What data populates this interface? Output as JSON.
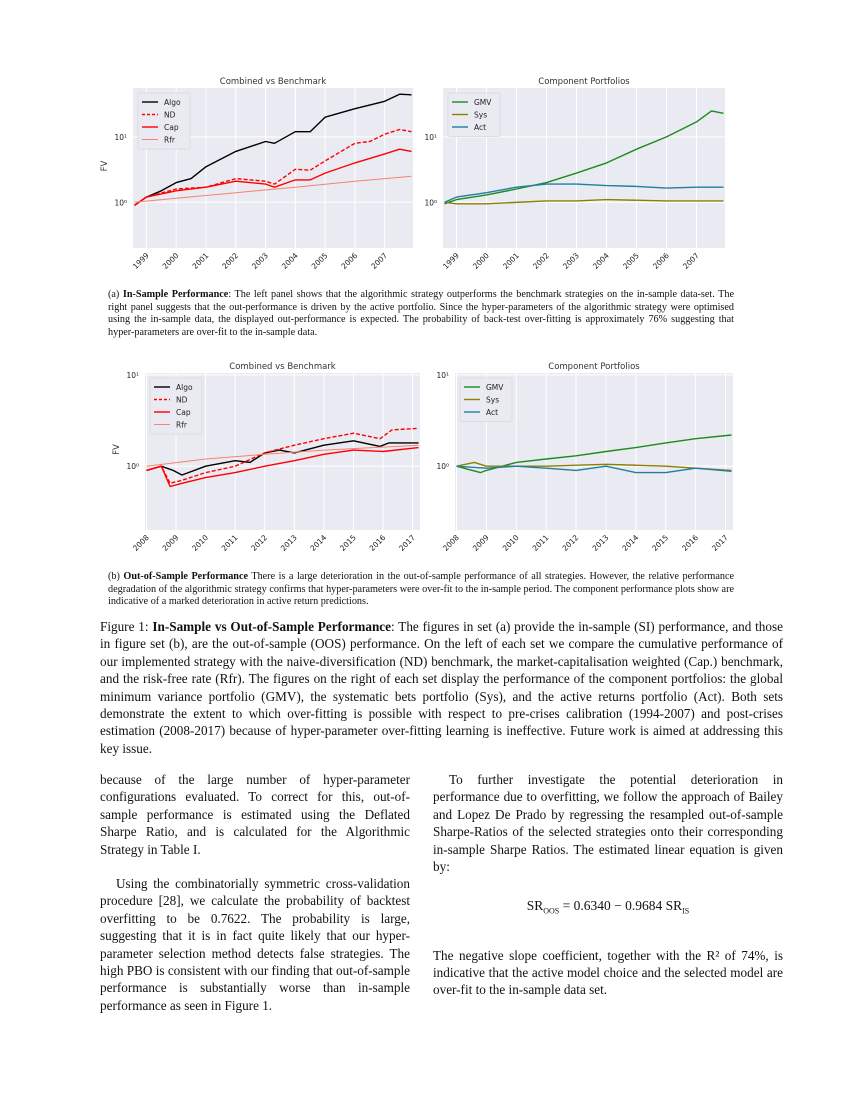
{
  "figure": {
    "panel_a_caption": {
      "label": "(a) ",
      "bold": "In-Sample Performance",
      "text": ": The left panel shows that the algorithmic strategy outperforms the benchmark strategies on the in-sample data-set. The right panel suggests that the out-performance is driven by the active portfolio. Since the hyper-parameters of the algorithmic strategy were optimised using the in-sample data, the displayed out-performance is expected. The probability of back-test over-fitting is approximately 76% suggesting that hyper-parameters are over-fit to the in-sample data."
    },
    "panel_b_caption": {
      "label": "(b) ",
      "bold": "Out-of-Sample Performance",
      "text": " There is a large deterioration in the out-of-sample performance of all strategies. However, the relative performance degradation of the algorithmic strategy confirms that hyper-parameters were over-fit to the in-sample period. The component performance plots show are indicative of a marked deterioration in active return predictions."
    },
    "caption": {
      "label": "Figure 1: ",
      "bold": "In-Sample vs Out-of-Sample Performance",
      "text": ": The figures in set (a) provide the in-sample (SI) performance, and those in figure set (b), are the out-of-sample (OOS) performance. On the left of each set we compare the cumulative performance of our implemented strategy with the naive-diversification (ND) benchmark, the market-capitalisation weighted (Cap.) benchmark, and the risk-free rate (Rfr). The figures on the right of each set display the performance of the component portfolios: the global minimum variance portfolio (GMV), the systematic bets portfolio (Sys), and the active returns portfolio (Act). Both sets demonstrate the extent to which over-fitting is possible with respect to pre-crises calibration (1994-2007) and post-crises estimation (2008-2017) because of hyper-parameter over-fitting learning is ineffective. Future work is aimed at addressing this key issue."
    }
  },
  "body": {
    "left": [
      "because of the large number of hyper-parameter configurations evaluated. To correct for this, out-of-sample performance is estimated using the Deflated Sharpe Ratio, and is calculated for the Algorithmic Strategy in Table I.",
      "Using the combinatorially symmetric cross-validation procedure [28], we calculate the probability of backtest overfitting to be 0.7622. The probability is large, suggesting that it is in fact quite likely that our hyper-parameter selection method detects false strategies. The high PBO is consistent with our finding that out-of-sample performance is substantially worse than in-sample performance as seen in Figure 1."
    ],
    "right": [
      "To further investigate the potential deterioration in performance due to overfitting, we follow the approach of Bailey and Lopez De Prado by regressing the resampled out-of-sample Sharpe-Ratios of the selected strategies onto their corresponding in-sample Sharpe Ratios. The estimated linear equation is given by:",
      "The negative slope coefficient, together with the R² of 74%, is indicative that the active model choice and the selected model are over-fit to the in-sample data set."
    ],
    "equation": {
      "lhs": "SR",
      "lhs_sub": "OOS",
      "rhs": " = 0.6340 − 0.9684 SR",
      "rhs_sub": "IS"
    }
  },
  "colors": {
    "plot_bg": "#eaeaf2",
    "grid": "#ffffff",
    "Algo": "#000000",
    "ND": "#ff0000",
    "Cap": "#ff0000",
    "Rfr": "#fa8072",
    "GMV": "#1a8c1a",
    "Sys": "#8c8000",
    "Act": "#1f7f9f"
  },
  "chart_data": [
    {
      "type": "line",
      "title": "Combined vs Benchmark",
      "ylabel": "FV",
      "yscale": "log",
      "ylim": [
        0.2,
        56
      ],
      "xlim": [
        1998.55,
        2007.95
      ],
      "yticks": [
        {
          "value": 1,
          "label": "10⁰"
        },
        {
          "value": 10,
          "label": "10¹"
        }
      ],
      "xticks": [
        "1999",
        "2000",
        "2001",
        "2002",
        "2003",
        "2004",
        "2005",
        "2006",
        "2007"
      ],
      "grid": true,
      "legend": "top-left",
      "series": [
        {
          "name": "Algo",
          "style": "solid",
          "x": [
            1998.6,
            1999,
            1999.5,
            2000,
            2000.5,
            2001,
            2002,
            2003,
            2003.3,
            2004,
            2004.5,
            2005,
            2006,
            2007,
            2007.5,
            2007.9
          ],
          "y": [
            0.9,
            1.2,
            1.5,
            2.0,
            2.3,
            3.5,
            6,
            8.5,
            8,
            12,
            12,
            20,
            27,
            35,
            45,
            44
          ]
        },
        {
          "name": "ND",
          "style": "dashed",
          "x": [
            1998.6,
            1999,
            2000,
            2001,
            2002,
            2003,
            2003.3,
            2004,
            2004.5,
            2005,
            2006,
            2006.5,
            2007,
            2007.5,
            2007.9
          ],
          "y": [
            0.9,
            1.2,
            1.6,
            1.7,
            2.3,
            2.1,
            1.9,
            3.2,
            3.1,
            4.3,
            8,
            8.5,
            11,
            13,
            12
          ]
        },
        {
          "name": "Cap",
          "style": "solid",
          "x": [
            1998.6,
            1999,
            2000,
            2001,
            2002,
            2003,
            2003.3,
            2004,
            2004.5,
            2005,
            2006,
            2007,
            2007.5,
            2007.9
          ],
          "y": [
            0.9,
            1.2,
            1.5,
            1.7,
            2.1,
            1.9,
            1.7,
            2.2,
            2.2,
            2.8,
            4,
            5.5,
            6.5,
            6
          ]
        },
        {
          "name": "Rfr",
          "style": "thin",
          "x": [
            1998.6,
            2000,
            2002,
            2004,
            2006,
            2007.9
          ],
          "y": [
            1.0,
            1.15,
            1.4,
            1.7,
            2.1,
            2.5
          ]
        }
      ]
    },
    {
      "type": "line",
      "title": "Component Portfolios",
      "yscale": "log",
      "ylim": [
        0.2,
        56
      ],
      "xlim": [
        1998.55,
        2007.95
      ],
      "yticks": [
        {
          "value": 1,
          "label": "10⁰"
        },
        {
          "value": 10,
          "label": "10¹"
        }
      ],
      "xticks": [
        "1999",
        "2000",
        "2001",
        "2002",
        "2003",
        "2004",
        "2005",
        "2006",
        "2007"
      ],
      "grid": true,
      "legend": "top-left",
      "series": [
        {
          "name": "GMV",
          "style": "solid",
          "x": [
            1998.6,
            1999,
            2000,
            2001,
            2002,
            2003,
            2004,
            2005,
            2006,
            2007,
            2007.5,
            2007.9
          ],
          "y": [
            0.95,
            1.1,
            1.3,
            1.6,
            2,
            2.8,
            4,
            6.5,
            10,
            17,
            25,
            23
          ]
        },
        {
          "name": "Sys",
          "style": "solid",
          "x": [
            1998.6,
            1999,
            2000,
            2002,
            2003,
            2004,
            2006,
            2007.9
          ],
          "y": [
            1.0,
            0.95,
            0.95,
            1.05,
            1.05,
            1.1,
            1.05,
            1.05
          ]
        },
        {
          "name": "Act",
          "style": "solid",
          "x": [
            1998.6,
            1999,
            2000,
            2001,
            2002,
            2003,
            2004,
            2005,
            2006,
            2007,
            2007.9
          ],
          "y": [
            1.0,
            1.2,
            1.4,
            1.7,
            1.9,
            1.9,
            1.8,
            1.75,
            1.65,
            1.7,
            1.7
          ]
        }
      ]
    },
    {
      "type": "line",
      "title": "Combined vs Benchmark",
      "ylabel": "FV",
      "yscale": "log",
      "ylim": [
        0.2,
        10.5
      ],
      "xlim": [
        2007.95,
        2017.25
      ],
      "yticks": [
        {
          "value": 1,
          "label": "10⁰"
        },
        {
          "value": 10,
          "label": "10¹"
        }
      ],
      "xticks": [
        "2008",
        "2009",
        "2010",
        "2011",
        "2012",
        "2013",
        "2014",
        "2015",
        "2016",
        "2017"
      ],
      "grid": true,
      "legend": "top-left",
      "series": [
        {
          "name": "Algo",
          "style": "solid",
          "x": [
            2008,
            2008.5,
            2008.9,
            2009.2,
            2010,
            2011,
            2011.5,
            2012,
            2012.5,
            2013,
            2014,
            2015,
            2015.9,
            2016.2,
            2017.2
          ],
          "y": [
            0.9,
            1.0,
            0.9,
            0.8,
            1.0,
            1.15,
            1.1,
            1.4,
            1.5,
            1.4,
            1.7,
            1.9,
            1.65,
            1.8,
            1.8
          ]
        },
        {
          "name": "ND",
          "style": "dashed",
          "x": [
            2008,
            2008.5,
            2008.8,
            2009.2,
            2010,
            2011,
            2012,
            2013,
            2014,
            2015,
            2015.9,
            2016.3,
            2017.2
          ],
          "y": [
            0.9,
            1.0,
            0.65,
            0.7,
            0.85,
            1.0,
            1.4,
            1.7,
            2.0,
            2.3,
            2.0,
            2.5,
            2.6
          ]
        },
        {
          "name": "Cap",
          "style": "solid",
          "x": [
            2008,
            2008.5,
            2008.8,
            2009.2,
            2010,
            2011,
            2012,
            2013,
            2014,
            2015,
            2016,
            2017.2
          ],
          "y": [
            0.9,
            1.0,
            0.6,
            0.65,
            0.75,
            0.85,
            1.0,
            1.15,
            1.35,
            1.5,
            1.45,
            1.6
          ]
        },
        {
          "name": "Rfr",
          "style": "thin",
          "x": [
            2008,
            2010,
            2012,
            2014,
            2016,
            2017.2
          ],
          "y": [
            1.0,
            1.2,
            1.35,
            1.5,
            1.62,
            1.7
          ]
        }
      ]
    },
    {
      "type": "line",
      "title": "Component Portfolios",
      "yscale": "log",
      "ylim": [
        0.2,
        10.5
      ],
      "xlim": [
        2007.95,
        2017.25
      ],
      "yticks": [
        {
          "value": 1,
          "label": "10⁰"
        },
        {
          "value": 10,
          "label": "10¹"
        }
      ],
      "xticks": [
        "2008",
        "2009",
        "2010",
        "2011",
        "2012",
        "2013",
        "2014",
        "2015",
        "2016",
        "2017"
      ],
      "grid": true,
      "legend": "top-left",
      "series": [
        {
          "name": "GMV",
          "style": "solid",
          "x": [
            2008,
            2008.8,
            2009,
            2010,
            2011,
            2012,
            2013,
            2014,
            2015,
            2016,
            2017.2
          ],
          "y": [
            1.0,
            0.85,
            0.9,
            1.1,
            1.2,
            1.3,
            1.45,
            1.6,
            1.8,
            2.0,
            2.2
          ]
        },
        {
          "name": "Sys",
          "style": "solid",
          "x": [
            2008,
            2008.6,
            2009,
            2011,
            2013,
            2015,
            2016,
            2017.2
          ],
          "y": [
            1.0,
            1.1,
            1.0,
            1.0,
            1.05,
            1.0,
            0.95,
            0.9
          ]
        },
        {
          "name": "Act",
          "style": "solid",
          "x": [
            2008,
            2009,
            2010,
            2011,
            2012,
            2013,
            2014,
            2015,
            2016,
            2017.2
          ],
          "y": [
            1.0,
            0.95,
            1.0,
            0.95,
            0.9,
            1.0,
            0.85,
            0.85,
            0.95,
            0.88
          ]
        }
      ]
    }
  ]
}
